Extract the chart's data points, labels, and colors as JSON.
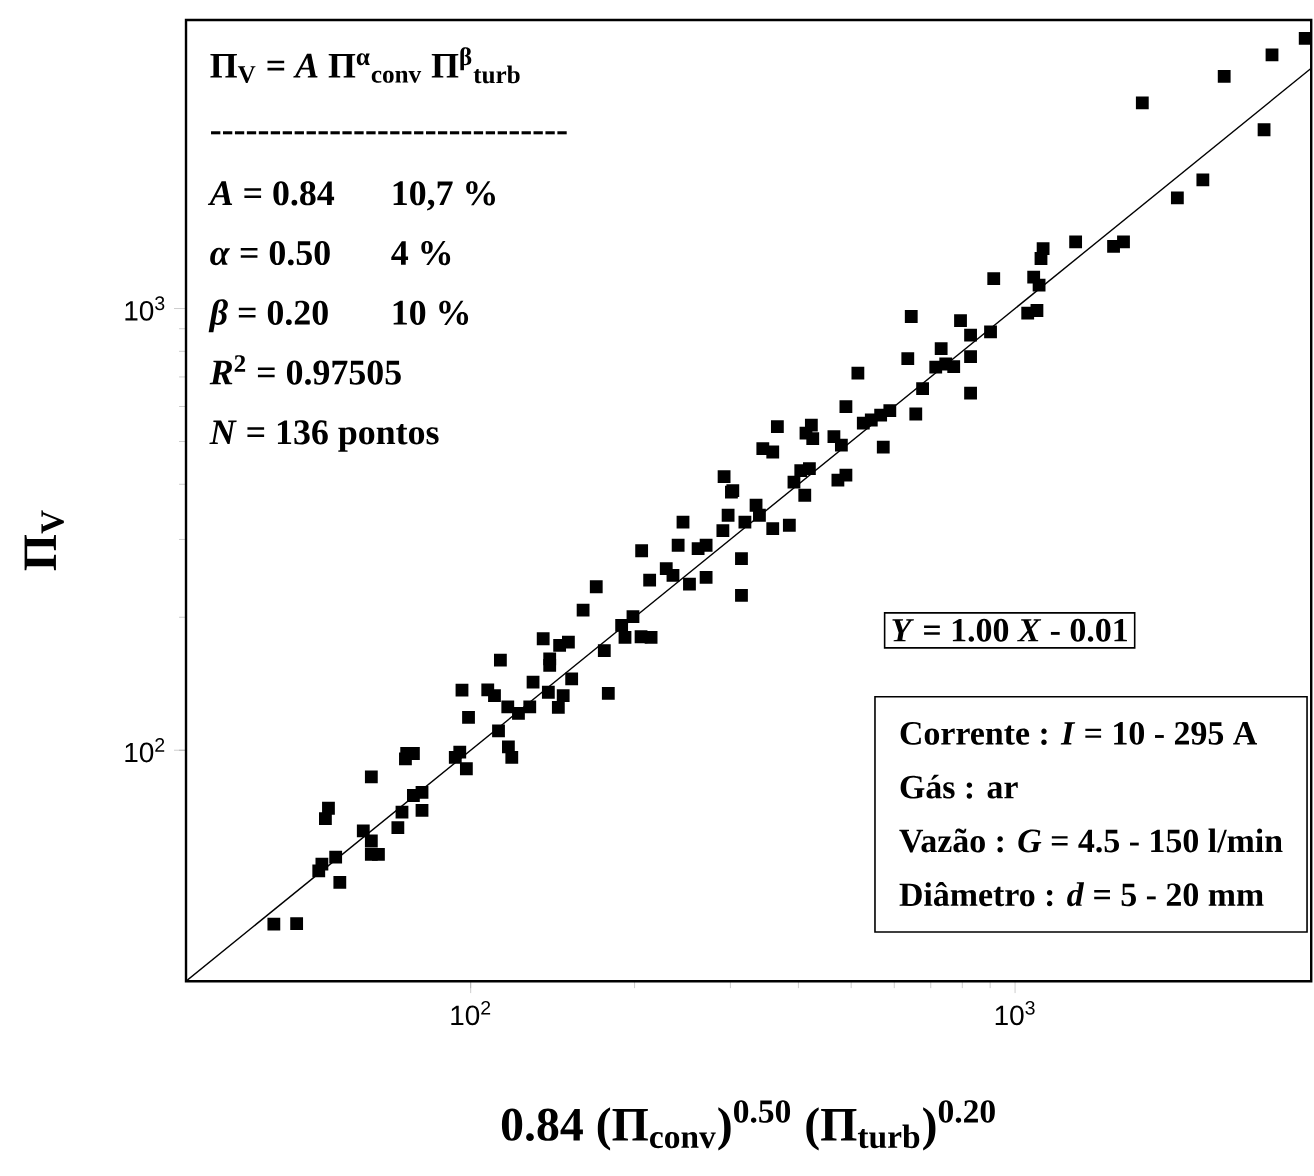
{
  "chart_data": {
    "type": "scatter",
    "xlabel": "0.84 (Π$_{conv}$)$^{0.50}$ (Π$_{turb}$)$^{0.20}$",
    "ylabel": "Π$_{V}$",
    "log": "xy",
    "marker": "square",
    "xlim": [
      30,
      3500
    ],
    "ylim": [
      30,
      4500
    ],
    "xticks": [
      {
        "value": 100,
        "label": "10$^{2}$"
      },
      {
        "value": 1000,
        "label": "10$^{3}$"
      }
    ],
    "yticks": [
      {
        "value": 100,
        "label": "10$^{2}$"
      },
      {
        "value": 1000,
        "label": "10$^{3}$"
      }
    ],
    "annotations": [
      "Π$_{V}$ = *A* Π$^{α}$$_{conv}$ Π$^{β}$$_{turb}$",
      "------------------------------",
      "*A* = 0.84",
      "10,7 %",
      "*α* = 0.50",
      "4 %",
      "*β* = 0.20",
      "10 %",
      "*R*$^{2}$ = 0.97505",
      "*N* = 136 pontos",
      "*Y* = 1.00 *X* - 0.01",
      "Corrente : *I* = 10 - 295 A",
      "Gás : ar",
      "Vazão : *G* = 4.5 - 150 l/min",
      "Diâmetro : *d* = 5 - 20 mm"
    ],
    "series": [
      {
        "color": "#000000",
        "x": [
          43.5,
          47.9,
          52.6,
          53.3,
          56.5,
          57.5,
          54.1,
          54.8,
          63.5,
          65.7,
          65.7,
          67.7,
          65.7,
          73.5,
          74.8,
          75.9,
          76.3,
          78.5,
          78.5,
          81.4,
          81.4,
          93.7,
          95.5,
          98.2,
          96.4,
          99.1,
          107.5,
          110.6,
          113.4,
          112.5,
          117.3,
          119,
          117,
          122.4,
          128.4,
          130.2,
          135.9,
          139.7,
          139.7,
          138.9,
          144.9,
          147.9,
          145.7,
          151.2,
          153.3,
          160.9,
          170.1,
          176,
          179,
          189.4,
          192.1,
          198.7,
          205.6,
          214.5,
          206.1,
          213.2,
          292.1,
          301.3,
          410.9,
          392.6,
          404,
          419,
          472.7,
          489,
          344.1,
          358.9,
          366,
          413,
          422.5,
          425,
          464.8,
          479.7,
          489,
          526.3,
          544.4,
          566.4,
          588.8,
          572.7,
          514.4,
          635.3,
          657.2,
          676.4,
          715.1,
          731.6,
          745.9,
          771.6,
          828.5,
          828.5,
          794.1,
          828.5,
          901.5,
          644.7,
          913.8,
          1055,
          1097,
          1082,
          1107,
          1116,
          1126,
          1292,
          1517,
          1582,
          1713,
          1987,
          2213,
          2422,
          2867,
          2965,
          3412,
          303.1,
          297.1,
          245.5,
          270.7,
          290.6,
          319,
          334.4,
          339.2,
          358.9,
          385,
          240.5,
          261.7,
          228.7,
          235.3,
          252.3,
          270.7,
          314.4,
          314.4
        ],
        "values": [
          40.4,
          40.5,
          53.3,
          55.2,
          57.3,
          50.2,
          70,
          73.9,
          65.7,
          62.3,
          58.1,
          58.1,
          87,
          66.8,
          72.4,
          95.6,
          98.3,
          98.3,
          79,
          80.3,
          73.1,
          96.3,
          99,
          90.8,
          136.8,
          118.7,
          137,
          133,
          160,
          110.6,
          101.8,
          96.3,
          125.4,
          121.2,
          125.4,
          142.6,
          178.8,
          161,
          155.6,
          135.3,
          125,
          133,
          172.7,
          175.7,
          145.1,
          207.6,
          234.5,
          168,
          134.5,
          191.8,
          180.1,
          200.6,
          180.7,
          180.1,
          282.9,
          242.7,
          416.3,
          384.1,
          377.8,
          404.7,
          429.5,
          434,
          409,
          419.4,
          481.8,
          473.3,
          540.4,
          522.1,
          544.3,
          507.6,
          512.9,
          490.4,
          599.8,
          550.1,
          559.3,
          573.5,
          587.4,
          485.3,
          713.9,
          770.4,
          577,
          658.9,
          736.5,
          811.6,
          749,
          738.9,
          778.5,
          870.5,
          939.3,
          643.2,
          885.1,
          959.2,
          1169,
          976.3,
          989.6,
          1178,
          1130,
          1298,
          1367,
          1415,
          1382,
          1415,
          2920,
          1781,
          1956,
          3354,
          2539,
          3751,
          4090,
          387,
          340.4,
          328.5,
          291.1,
          314.1,
          328.5,
          358.6,
          340.4,
          317.4,
          323.1,
          291.1,
          285.9,
          257.6,
          248.9,
          237.7,
          246.3,
          271.4,
          224.2
        ]
      },
      {
        "type": "line",
        "marker": "none",
        "color": "#000000",
        "x": [
          30,
          3500
        ],
        "values": [
          30,
          3500
        ]
      }
    ]
  }
}
